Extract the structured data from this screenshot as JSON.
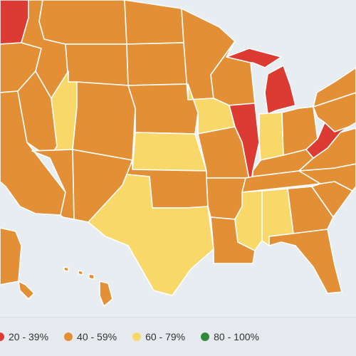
{
  "colors": {
    "ocean": "#e8edf1",
    "band_20_39": "#dc3b33",
    "band_40_59": "#e38f35",
    "band_60_79": "#f9d86a",
    "band_80_100": "#2e8b3a",
    "border": "#ffffff"
  },
  "legend": {
    "items": [
      {
        "label": "20 - 39%",
        "color": "#dc3b33"
      },
      {
        "label": "40 - 59%",
        "color": "#e38f35"
      },
      {
        "label": "60 - 79%",
        "color": "#f9d86a"
      },
      {
        "label": "80 - 100%",
        "color": "#2e8b3a"
      }
    ]
  },
  "states": {
    "WA": "20-39",
    "OR": "40-59",
    "CA": "40-59",
    "NV": "40-59",
    "ID": "40-59",
    "MT": "40-59",
    "WY": "40-59",
    "UT": "60-79",
    "AZ": "40-59",
    "CO": "40-59",
    "NM": "40-59",
    "ND": "40-59",
    "SD": "40-59",
    "NE": "40-59",
    "KS": "60-79",
    "OK": "40-59",
    "TX": "60-79",
    "MN": "40-59",
    "IA": "60-79",
    "MO": "40-59",
    "AR": "40-59",
    "LA": "40-59",
    "WI": "40-59",
    "IL": "20-39",
    "MI": "20-39",
    "IN": "60-79",
    "OH": "40-59",
    "KY": "40-59",
    "TN": "40-59",
    "MS": "60-79",
    "AL": "60-79",
    "GA": "40-59",
    "FL": "40-59",
    "SC": "40-59",
    "NC": "40-59",
    "VA": "40-59",
    "WV": "20-39",
    "PA": "40-59",
    "NY": "40-59",
    "AK": "40-59",
    "HI": "40-59"
  }
}
